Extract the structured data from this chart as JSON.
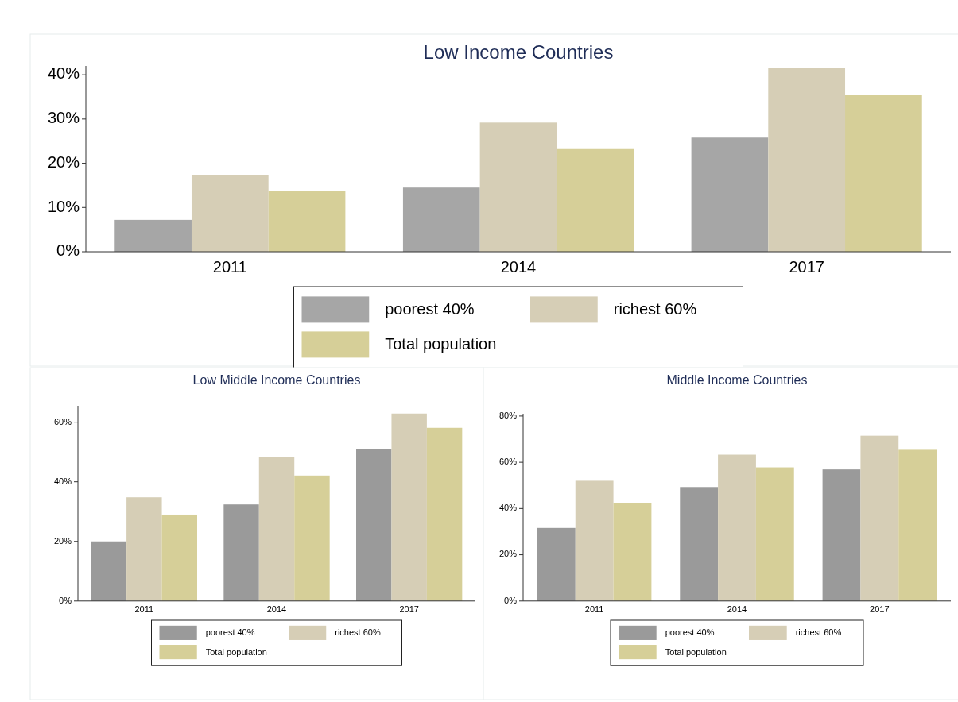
{
  "chart_data": [
    {
      "type": "bar",
      "title": "Low Income Countries",
      "categories": [
        "2011",
        "2014",
        "2017"
      ],
      "series": [
        {
          "name": "poorest 40%",
          "color": "#a6a6a6",
          "values": [
            7.2,
            14.5,
            25.8
          ]
        },
        {
          "name": "richest 60%",
          "color": "#d6ceb6",
          "values": [
            17.4,
            29.2,
            41.5
          ]
        },
        {
          "name": "Total population",
          "color": "#d6cf98",
          "values": [
            13.7,
            23.2,
            35.4
          ]
        }
      ],
      "ylim": [
        0,
        42
      ],
      "yticks": [
        {
          "value": 0,
          "label": "0%"
        },
        {
          "value": 10,
          "label": "10%"
        },
        {
          "value": 20,
          "label": "20%"
        },
        {
          "value": 30,
          "label": "30%"
        },
        {
          "value": 40,
          "label": "40%"
        }
      ],
      "grid": false,
      "legend": "bottom"
    },
    {
      "type": "bar",
      "title": "Low Middle Income Countries",
      "categories": [
        "2011",
        "2014",
        "2017"
      ],
      "series": [
        {
          "name": "poorest 40%",
          "color": "#9a9a9a",
          "values": [
            20,
            32.4,
            51
          ]
        },
        {
          "name": "richest 60%",
          "color": "#d6ceb6",
          "values": [
            34.8,
            48.3,
            62.9
          ]
        },
        {
          "name": "Total population",
          "color": "#d6cf98",
          "values": [
            29,
            42.1,
            58.1
          ]
        }
      ],
      "ylim": [
        0,
        65.5
      ],
      "yticks": [
        {
          "value": 0,
          "label": "0%"
        },
        {
          "value": 20,
          "label": "20%"
        },
        {
          "value": 40,
          "label": "40%"
        },
        {
          "value": 60,
          "label": "60%"
        }
      ],
      "grid": false,
      "legend": "bottom"
    },
    {
      "type": "bar",
      "title": "Middle Income Countries",
      "categories": [
        "2011",
        "2014",
        "2017"
      ],
      "series": [
        {
          "name": "poorest 40%",
          "color": "#9a9a9a",
          "values": [
            31.6,
            49.3,
            56.9
          ]
        },
        {
          "name": "richest 60%",
          "color": "#d6ceb6",
          "values": [
            52,
            63.3,
            71.5
          ]
        },
        {
          "name": "Total population",
          "color": "#d6cf98",
          "values": [
            42.3,
            57.8,
            65.4
          ]
        }
      ],
      "ylim": [
        0,
        81
      ],
      "yticks": [
        {
          "value": 0,
          "label": "0%"
        },
        {
          "value": 20,
          "label": "20%"
        },
        {
          "value": 40,
          "label": "40%"
        },
        {
          "value": 60,
          "label": "60%"
        },
        {
          "value": 80,
          "label": "80%"
        }
      ],
      "grid": false,
      "legend": "bottom"
    }
  ]
}
